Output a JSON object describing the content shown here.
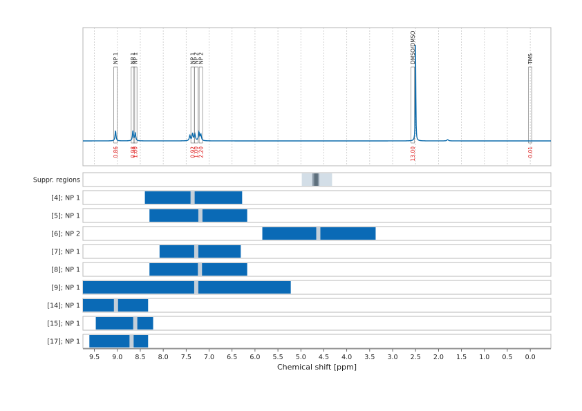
{
  "chart_data": {
    "type": "nmr-spectrum-with-ranges",
    "xlabel": "Chemical shift [ppm]",
    "xlim": [
      9.75,
      -0.45
    ],
    "reversed_x": true,
    "ticks": [
      9.5,
      9.0,
      8.5,
      8.0,
      7.5,
      7.0,
      6.5,
      6.0,
      5.5,
      5.0,
      4.5,
      4.0,
      3.5,
      3.0,
      2.5,
      2.0,
      1.5,
      1.0,
      0.5,
      0.0
    ],
    "tick_labels": [
      "9.5",
      "9.0",
      "8.5",
      "8.0",
      "7.5",
      "7.0",
      "6.5",
      "6.0",
      "5.5",
      "5.0",
      "4.5",
      "4.0",
      "3.5",
      "3.0",
      "2.5",
      "2.0",
      "1.5",
      "1.0",
      "0.5",
      "0.0"
    ],
    "grid": true,
    "line_color": "#0a6aab",
    "integral_color": "#dd1111",
    "spectrum_peaks": [
      {
        "ppm": 9.04,
        "height": 0.1,
        "width": 0.012
      },
      {
        "ppm": 8.66,
        "height": 0.1,
        "width": 0.012
      },
      {
        "ppm": 8.61,
        "height": 0.08,
        "width": 0.012
      },
      {
        "ppm": 7.42,
        "height": 0.05,
        "width": 0.014
      },
      {
        "ppm": 7.36,
        "height": 0.07,
        "width": 0.014
      },
      {
        "ppm": 7.31,
        "height": 0.06,
        "width": 0.014
      },
      {
        "ppm": 7.22,
        "height": 0.08,
        "width": 0.014
      },
      {
        "ppm": 7.18,
        "height": 0.06,
        "width": 0.014
      },
      {
        "ppm": 2.5,
        "height": 0.94,
        "width": 0.006
      },
      {
        "ppm": 1.8,
        "height": 0.012,
        "width": 0.02
      }
    ],
    "annotations": [
      {
        "ppm": 9.04,
        "label": "NP 1",
        "integral": "0.86"
      },
      {
        "ppm": 8.66,
        "label": "NP 1",
        "integral": "0.98"
      },
      {
        "ppm": 8.61,
        "label": "NP 1",
        "integral": "1.00"
      },
      {
        "ppm": 7.36,
        "label": "NP 1",
        "integral": "0.92"
      },
      {
        "ppm": 7.28,
        "label": "NP 2",
        "integral": "1.00"
      },
      {
        "ppm": 7.18,
        "label": "NP 2",
        "integral": "2.20"
      },
      {
        "ppm": 2.56,
        "label": "DMSO/DMSO",
        "integral": "13.00"
      },
      {
        "ppm": 0.0,
        "label": "TMS",
        "integral": "0.01"
      }
    ],
    "suppr_regions": {
      "label": "Suppr. regions",
      "outer": [
        4.98,
        4.32
      ],
      "inner": [
        4.75,
        4.6
      ],
      "core": [
        4.71,
        4.63
      ]
    },
    "ranges": [
      {
        "label": "[4]; NP 1",
        "from": 8.4,
        "to": 6.28,
        "center": 7.36
      },
      {
        "label": "[5]; NP 1",
        "from": 8.3,
        "to": 6.17,
        "center": 7.19
      },
      {
        "label": "[6]; NP 2",
        "from": 5.84,
        "to": 3.37,
        "center": 4.62
      },
      {
        "label": "[7]; NP 1",
        "from": 8.08,
        "to": 6.31,
        "center": 7.28
      },
      {
        "label": "[8]; NP 1",
        "from": 8.3,
        "to": 6.17,
        "center": 7.2
      },
      {
        "label": "[9]; NP 1",
        "from": 9.75,
        "to": 5.22,
        "center": 7.28
      },
      {
        "label": "[14]; NP 1",
        "from": 9.75,
        "to": 8.33,
        "center": 9.03
      },
      {
        "label": "[15]; NP 1",
        "from": 9.47,
        "to": 8.22,
        "center": 8.61
      },
      {
        "label": "[17]; NP 1",
        "from": 9.61,
        "to": 8.33,
        "center": 8.69
      }
    ],
    "range_color": "#0a6ab6",
    "center_color": "#c4cfd9"
  }
}
